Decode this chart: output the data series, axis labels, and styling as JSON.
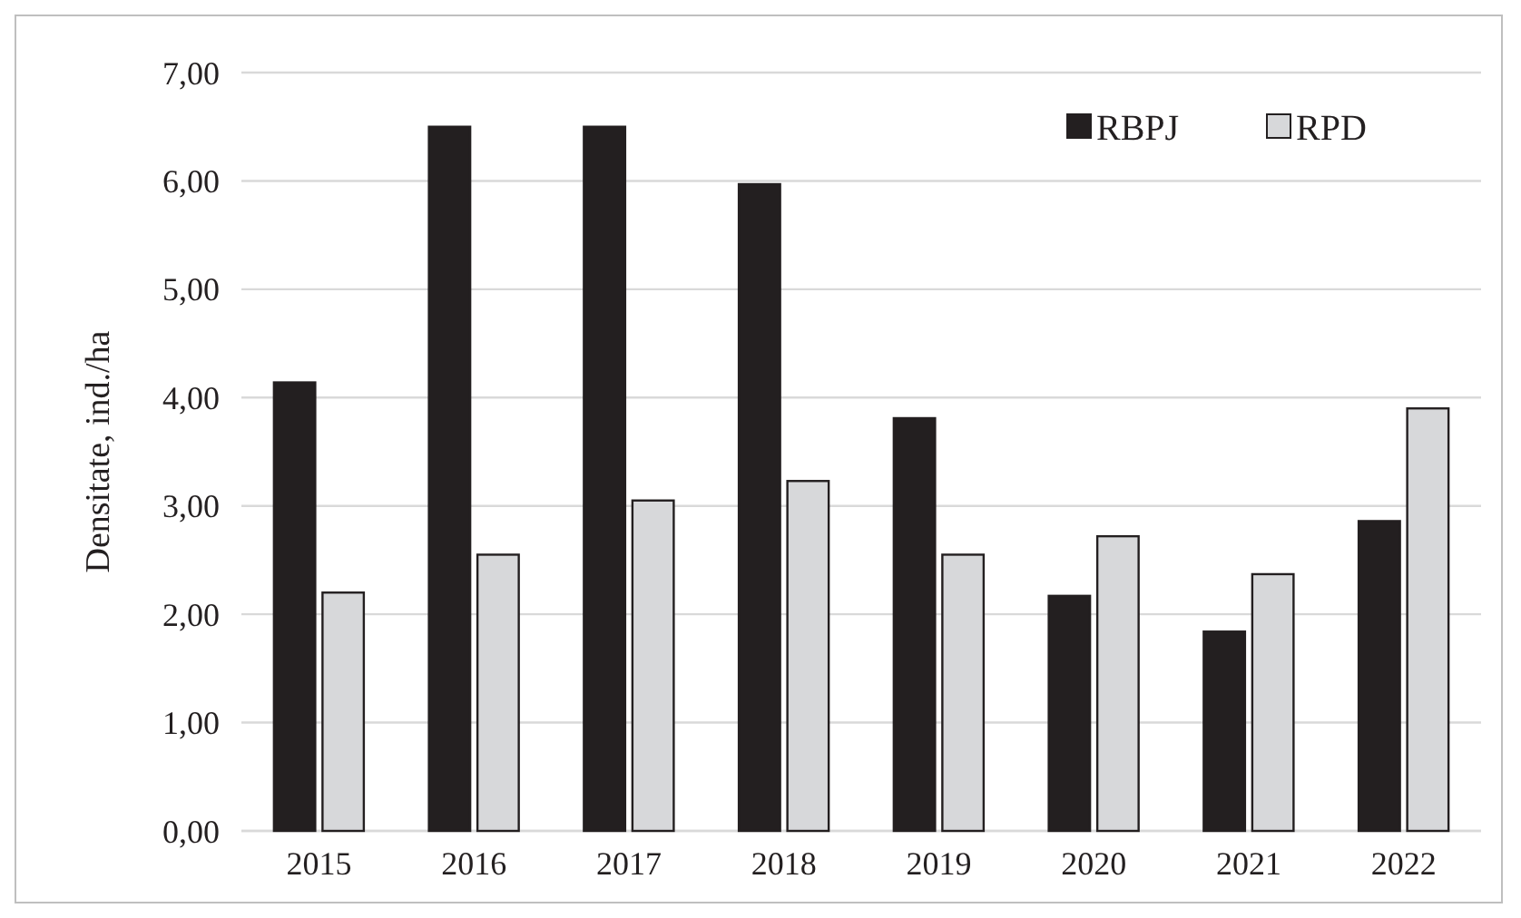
{
  "chart_data": {
    "type": "bar",
    "ylabel": "Densitate, ind./ha",
    "categories": [
      "2015",
      "2016",
      "2017",
      "2018",
      "2019",
      "2020",
      "2021",
      "2022"
    ],
    "series": [
      {
        "name": "RBPJ",
        "color": "#231f20",
        "values": [
          4.14,
          6.5,
          6.5,
          5.97,
          3.81,
          2.17,
          1.84,
          2.86
        ]
      },
      {
        "name": "RPD",
        "color": "#d7d8da",
        "values": [
          2.2,
          2.55,
          3.05,
          3.23,
          2.55,
          2.72,
          2.37,
          3.9
        ]
      }
    ],
    "ylim": [
      0,
      7
    ],
    "yticks": [
      {
        "value": 0,
        "label": "0,00"
      },
      {
        "value": 1,
        "label": "1,00"
      },
      {
        "value": 2,
        "label": "2,00"
      },
      {
        "value": 3,
        "label": "3,00"
      },
      {
        "value": 4,
        "label": "4,00"
      },
      {
        "value": 5,
        "label": "5,00"
      },
      {
        "value": 6,
        "label": "6,00"
      },
      {
        "value": 7,
        "label": "7,00"
      }
    ],
    "grid": "y",
    "legend": "top right"
  }
}
